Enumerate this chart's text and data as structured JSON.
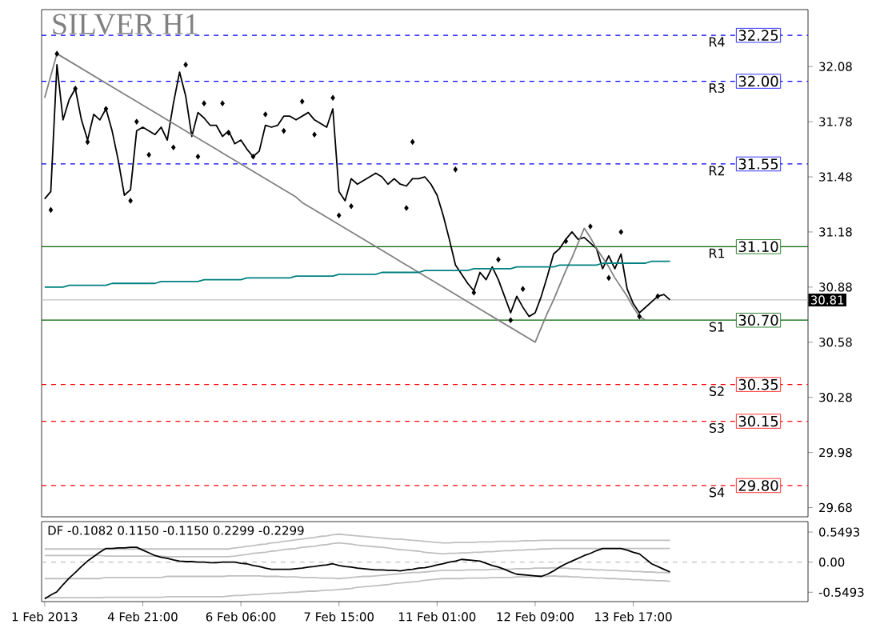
{
  "chart_data": [
    {
      "type": "line",
      "title": "SILVER H1",
      "ylim": [
        29.63,
        32.39
      ],
      "yticks": [
        29.68,
        29.98,
        30.28,
        30.58,
        30.88,
        31.18,
        31.48,
        31.78,
        32.08
      ],
      "tick_labels": "y",
      "series": [
        {
          "color": "#000000",
          "values": [
            31.36,
            31.4,
            32.09,
            31.79,
            31.9,
            31.96,
            31.79,
            31.68,
            31.82,
            31.79,
            31.85,
            31.73,
            31.57,
            31.38,
            31.41,
            31.73,
            31.75,
            31.73,
            31.71,
            31.75,
            31.68,
            31.88,
            32.05,
            31.92,
            31.7,
            31.83,
            31.8,
            31.76,
            31.76,
            31.7,
            31.73,
            31.66,
            31.68,
            31.63,
            31.59,
            31.62,
            31.76,
            31.75,
            31.76,
            31.81,
            31.81,
            31.79,
            31.81,
            31.83,
            31.79,
            31.77,
            31.75,
            31.85,
            31.4,
            31.35,
            31.47,
            31.44,
            31.46,
            31.48,
            31.5,
            31.48,
            31.44,
            31.47,
            31.44,
            31.43,
            31.47,
            31.47,
            31.48,
            31.44,
            31.38,
            31.27,
            31.14,
            31.0,
            30.95,
            30.9,
            30.86,
            30.96,
            30.92,
            30.99,
            30.92,
            30.83,
            30.74,
            30.83,
            30.77,
            30.72,
            30.74,
            30.83,
            30.94,
            31.06,
            31.09,
            31.14,
            31.18,
            31.14,
            31.15,
            31.12,
            31.09,
            30.98,
            31.05,
            30.98,
            31.06,
            30.87,
            30.79,
            30.74,
            30.77,
            30.8,
            30.83,
            30.84,
            30.81,
            null,
            null,
            null,
            null,
            null,
            null,
            null,
            null,
            null,
            null,
            null,
            null,
            null,
            null,
            null,
            null,
            null,
            null,
            null,
            null,
            null,
            null
          ]
        },
        {
          "color": "#808080",
          "values": [
            31.91,
            32.03,
            32.15,
            32.13,
            32.11,
            32.09,
            32.07,
            32.05,
            32.03,
            32.01,
            31.99,
            31.97,
            31.95,
            31.93,
            31.91,
            31.89,
            31.87,
            31.85,
            31.83,
            31.81,
            31.79,
            31.77,
            31.75,
            31.73,
            31.71,
            31.69,
            31.67,
            31.65,
            31.63,
            31.61,
            31.59,
            31.57,
            31.55,
            31.53,
            31.51,
            31.49,
            31.47,
            31.45,
            31.43,
            31.41,
            31.39,
            31.37,
            31.34,
            31.32,
            31.3,
            31.28,
            31.26,
            31.24,
            31.22,
            31.2,
            31.18,
            31.16,
            31.14,
            31.12,
            31.1,
            31.08,
            31.06,
            31.04,
            31.02,
            31.0,
            30.98,
            30.96,
            30.94,
            30.92,
            30.9,
            30.88,
            30.86,
            30.84,
            30.82,
            30.8,
            30.78,
            30.76,
            30.74,
            30.72,
            30.7,
            30.68,
            30.66,
            30.64,
            30.62,
            30.6,
            30.58,
            30.66,
            30.74,
            30.81,
            30.89,
            30.97,
            31.04,
            31.12,
            31.2,
            31.15,
            31.09,
            31.04,
            30.99,
            30.93,
            30.88,
            30.83,
            30.77,
            30.72,
            30.7,
            null,
            null,
            null,
            null,
            null,
            null,
            null,
            null,
            null,
            null,
            null,
            null,
            null,
            null,
            null,
            null,
            null,
            null,
            null,
            null,
            null,
            null,
            null,
            null,
            null,
            null
          ]
        },
        {
          "color": "#008080",
          "values": [
            30.88,
            30.88,
            30.88,
            30.88,
            30.89,
            30.89,
            30.89,
            30.89,
            30.89,
            30.89,
            30.89,
            30.9,
            30.9,
            30.9,
            30.9,
            30.9,
            30.9,
            30.9,
            30.9,
            30.91,
            30.91,
            30.91,
            30.91,
            30.91,
            30.91,
            30.91,
            30.92,
            30.92,
            30.92,
            30.92,
            30.92,
            30.92,
            30.92,
            30.93,
            30.93,
            30.93,
            30.93,
            30.93,
            30.93,
            30.93,
            30.93,
            30.94,
            30.94,
            30.94,
            30.94,
            30.94,
            30.94,
            30.94,
            30.95,
            30.95,
            30.95,
            30.95,
            30.95,
            30.95,
            30.95,
            30.96,
            30.96,
            30.96,
            30.96,
            30.96,
            30.96,
            30.96,
            30.97,
            30.97,
            30.97,
            30.97,
            30.97,
            30.97,
            30.97,
            30.97,
            30.98,
            30.98,
            30.98,
            30.98,
            30.98,
            30.98,
            30.98,
            30.99,
            30.99,
            30.99,
            30.99,
            30.99,
            30.99,
            30.99,
            31.0,
            31.0,
            31.0,
            31.0,
            31.0,
            31.0,
            31.0,
            31.01,
            31.01,
            31.01,
            31.01,
            31.01,
            31.01,
            31.01,
            31.01,
            31.02,
            31.02,
            31.02,
            31.02,
            null,
            null,
            null,
            null,
            null,
            null,
            null,
            null,
            null,
            null,
            null,
            null,
            null,
            null,
            null,
            null,
            null,
            null,
            null,
            null,
            null,
            null
          ]
        },
        {
          "type": "scatter",
          "marker": "diamond",
          "color": "#000000",
          "values": [
            null,
            31.3,
            32.15,
            null,
            null,
            31.96,
            null,
            31.67,
            null,
            null,
            31.85,
            null,
            null,
            null,
            31.35,
            31.78,
            null,
            31.6,
            null,
            null,
            null,
            31.64,
            null,
            32.09,
            null,
            31.59,
            31.88,
            null,
            null,
            31.88,
            31.72,
            null,
            null,
            null,
            31.59,
            null,
            31.82,
            null,
            null,
            31.73,
            null,
            null,
            31.89,
            null,
            31.71,
            null,
            null,
            31.91,
            31.27,
            null,
            31.32,
            null,
            null,
            null,
            null,
            null,
            null,
            null,
            null,
            31.31,
            31.67,
            null,
            null,
            null,
            null,
            null,
            null,
            31.52,
            null,
            null,
            30.85,
            null,
            null,
            null,
            31.03,
            null,
            30.7,
            null,
            30.87,
            null,
            null,
            null,
            null,
            null,
            null,
            31.13,
            null,
            null,
            null,
            31.21,
            null,
            null,
            30.93,
            null,
            31.18,
            null,
            null,
            30.72,
            null,
            null,
            30.83,
            null,
            null,
            null,
            null,
            null,
            null,
            null,
            null,
            null,
            null,
            null,
            null,
            null,
            null,
            null,
            null,
            null,
            null,
            null,
            null,
            null,
            null,
            null,
            null
          ]
        }
      ],
      "ref_lines": [
        {
          "axis": "y",
          "value": 32.25,
          "label": "R4",
          "color": "#0000ff",
          "line_style": "dashed"
        },
        {
          "axis": "y",
          "value": 32.0,
          "label": "R3",
          "color": "#0000ff",
          "line_style": "dashed"
        },
        {
          "axis": "y",
          "value": 31.55,
          "label": "R2",
          "color": "#0000ff",
          "line_style": "dashed"
        },
        {
          "axis": "y",
          "value": 31.1,
          "label": "R1",
          "color": "#006400",
          "line_style": "solid"
        },
        {
          "axis": "y",
          "value": 30.7,
          "label": "S1",
          "color": "#006400",
          "line_style": "solid"
        },
        {
          "axis": "y",
          "value": 30.35,
          "label": "S2",
          "color": "#ff0000",
          "line_style": "dashed"
        },
        {
          "axis": "y",
          "value": 30.15,
          "label": "S3",
          "color": "#ff0000",
          "line_style": "dashed"
        },
        {
          "axis": "y",
          "value": 29.8,
          "label": "S4",
          "color": "#ff0000",
          "line_style": "dashed"
        },
        {
          "axis": "y",
          "value": 30.81,
          "color": "#c0c0c0",
          "line_style": "solid"
        }
      ],
      "annotations": [
        {
          "text": "32.25",
          "y": 32.25
        },
        {
          "text": "32.00",
          "y": 32.0
        },
        {
          "text": "31.55",
          "y": 31.55
        },
        {
          "text": "31.10",
          "y": 31.1
        },
        {
          "text": "30.70",
          "y": 30.7
        },
        {
          "text": "30.35",
          "y": 30.35
        },
        {
          "text": "30.15",
          "y": 30.15
        },
        {
          "text": "29.80",
          "y": 29.8
        },
        {
          "text": "30.81",
          "y": 30.81
        }
      ]
    },
    {
      "type": "line",
      "title": "DF -0.1082 0.1150 -0.1150 0.2299 -0.2299",
      "ylim": [
        -0.72,
        0.74
      ],
      "categories": [
        "1 Feb 2013",
        null,
        null,
        null,
        null,
        null,
        null,
        null,
        null,
        null,
        null,
        null,
        null,
        null,
        null,
        null,
        "4 Feb 21:00",
        null,
        null,
        null,
        null,
        null,
        null,
        null,
        null,
        null,
        null,
        null,
        null,
        null,
        null,
        null,
        "6 Feb 06:00",
        null,
        null,
        null,
        null,
        null,
        null,
        null,
        null,
        null,
        null,
        null,
        null,
        null,
        null,
        null,
        "7 Feb 15:00",
        null,
        null,
        null,
        null,
        null,
        null,
        null,
        null,
        null,
        null,
        null,
        null,
        null,
        null,
        null,
        "11 Feb 01:00",
        null,
        null,
        null,
        null,
        null,
        null,
        null,
        null,
        null,
        null,
        null,
        null,
        null,
        null,
        null,
        "12 Feb 09:00",
        null,
        null,
        null,
        null,
        null,
        null,
        null,
        null,
        null,
        null,
        null,
        null,
        null,
        null,
        null,
        "13 Feb 17:00",
        null,
        null,
        null,
        null,
        null,
        null,
        null,
        null,
        null,
        null,
        null,
        null,
        null,
        null,
        null,
        null,
        null,
        null,
        null,
        null,
        null,
        null,
        null,
        null,
        null,
        null,
        null,
        null
      ],
      "yticks": [
        -0.5493,
        {
          "value": 0,
          "label": "0.00"
        },
        0.5493
      ],
      "series": [
        {
          "color": "#c0c0c0",
          "values": [
            0.24,
            0.24,
            0.24,
            0.24,
            0.24,
            0.24,
            0.24,
            0.24,
            0.24,
            0.24,
            0.24,
            0.24,
            0.24,
            0.24,
            0.24,
            0.24,
            0.24,
            0.24,
            0.24,
            0.24,
            0.24,
            0.24,
            0.24,
            0.24,
            0.24,
            0.24,
            0.24,
            0.24,
            0.24,
            0.24,
            0.24,
            0.26,
            0.27,
            0.29,
            0.3,
            0.32,
            0.33,
            0.35,
            0.36,
            0.38,
            0.39,
            0.41,
            0.42,
            0.44,
            0.45,
            0.47,
            0.48,
            0.5,
            0.51,
            0.5,
            0.49,
            0.48,
            0.47,
            0.46,
            0.45,
            0.44,
            0.43,
            0.42,
            0.42,
            0.41,
            0.4,
            0.39,
            0.38,
            0.37,
            0.36,
            0.35,
            0.35,
            0.36,
            0.36,
            0.36,
            0.36,
            0.37,
            0.37,
            0.37,
            0.38,
            0.38,
            0.38,
            0.38,
            0.39,
            0.39,
            0.39,
            0.4,
            0.4,
            0.4,
            0.4,
            0.4,
            0.4,
            0.4,
            0.4,
            0.4,
            0.4,
            0.4,
            0.4,
            0.4,
            0.4,
            0.4,
            0.4,
            0.4,
            0.4,
            0.4,
            0.4,
            0.4,
            0.4,
            null,
            null,
            null,
            null,
            null,
            null,
            null,
            null,
            null,
            null,
            null,
            null,
            null,
            null,
            null,
            null,
            null,
            null,
            null,
            null,
            null,
            null
          ]
        },
        {
          "color": "#c0c0c0",
          "values": [
            0.12,
            0.12,
            0.12,
            0.12,
            0.12,
            0.12,
            0.12,
            0.12,
            0.12,
            0.12,
            0.11,
            0.11,
            0.11,
            0.11,
            0.11,
            0.11,
            0.11,
            0.11,
            0.11,
            0.11,
            0.1,
            0.1,
            0.1,
            0.1,
            0.1,
            0.1,
            0.1,
            0.1,
            0.1,
            0.1,
            0.1,
            0.11,
            0.13,
            0.14,
            0.16,
            0.17,
            0.18,
            0.2,
            0.21,
            0.23,
            0.24,
            0.25,
            0.27,
            0.28,
            0.29,
            0.31,
            0.32,
            0.34,
            0.35,
            0.34,
            0.33,
            0.31,
            0.3,
            0.29,
            0.28,
            0.27,
            0.26,
            0.24,
            0.23,
            0.22,
            0.21,
            0.2,
            0.18,
            0.17,
            0.16,
            0.15,
            0.16,
            0.16,
            0.17,
            0.17,
            0.18,
            0.18,
            0.19,
            0.19,
            0.2,
            0.21,
            0.21,
            0.22,
            0.22,
            0.23,
            0.23,
            0.24,
            0.24,
            0.25,
            0.25,
            0.25,
            0.25,
            0.25,
            0.25,
            0.25,
            0.25,
            0.25,
            0.25,
            0.25,
            0.25,
            0.25,
            0.25,
            0.25,
            0.25,
            0.25,
            0.25,
            0.25,
            0.25,
            null,
            null,
            null,
            null,
            null,
            null,
            null,
            null,
            null,
            null,
            null,
            null,
            null,
            null,
            null,
            null,
            null,
            null,
            null,
            null,
            null,
            null
          ]
        },
        {
          "color": "#c0c0c0",
          "values": [
            -0.3,
            -0.3,
            -0.3,
            -0.3,
            -0.3,
            -0.3,
            -0.3,
            -0.3,
            -0.3,
            -0.3,
            -0.28,
            -0.28,
            -0.28,
            -0.28,
            -0.28,
            -0.28,
            -0.28,
            -0.28,
            -0.28,
            -0.28,
            -0.26,
            -0.26,
            -0.26,
            -0.26,
            -0.26,
            -0.26,
            -0.26,
            -0.26,
            -0.26,
            -0.26,
            -0.25,
            -0.25,
            -0.25,
            -0.25,
            -0.25,
            -0.25,
            -0.26,
            -0.26,
            -0.26,
            -0.27,
            -0.27,
            -0.27,
            -0.28,
            -0.28,
            -0.28,
            -0.29,
            -0.29,
            -0.29,
            -0.3,
            -0.29,
            -0.28,
            -0.27,
            -0.26,
            -0.26,
            -0.25,
            -0.24,
            -0.23,
            -0.22,
            -0.21,
            -0.2,
            -0.19,
            -0.19,
            -0.18,
            -0.17,
            -0.16,
            -0.15,
            -0.15,
            -0.15,
            -0.15,
            -0.14,
            -0.14,
            -0.14,
            -0.14,
            -0.13,
            -0.13,
            -0.13,
            -0.13,
            -0.12,
            -0.12,
            -0.12,
            -0.11,
            -0.11,
            -0.11,
            -0.1,
            -0.11,
            -0.11,
            -0.12,
            -0.12,
            -0.13,
            -0.13,
            -0.14,
            -0.14,
            -0.15,
            -0.15,
            -0.16,
            -0.16,
            -0.17,
            -0.17,
            -0.18,
            -0.18,
            -0.19,
            -0.19,
            -0.2,
            null,
            null,
            null,
            null,
            null,
            null,
            null,
            null,
            null,
            null,
            null,
            null,
            null,
            null,
            null,
            null,
            null,
            null,
            null,
            null,
            null,
            null
          ]
        },
        {
          "color": "#c0c0c0",
          "values": [
            -0.65,
            -0.65,
            -0.65,
            -0.65,
            -0.65,
            -0.65,
            -0.65,
            -0.65,
            -0.65,
            -0.65,
            -0.64,
            -0.64,
            -0.64,
            -0.64,
            -0.64,
            -0.64,
            -0.64,
            -0.64,
            -0.64,
            -0.64,
            -0.63,
            -0.63,
            -0.63,
            -0.63,
            -0.63,
            -0.63,
            -0.63,
            -0.63,
            -0.63,
            -0.63,
            -0.62,
            -0.61,
            -0.61,
            -0.6,
            -0.59,
            -0.59,
            -0.58,
            -0.57,
            -0.57,
            -0.56,
            -0.55,
            -0.55,
            -0.54,
            -0.53,
            -0.53,
            -0.52,
            -0.51,
            -0.51,
            -0.5,
            -0.49,
            -0.48,
            -0.46,
            -0.45,
            -0.44,
            -0.43,
            -0.42,
            -0.41,
            -0.39,
            -0.38,
            -0.37,
            -0.36,
            -0.35,
            -0.33,
            -0.32,
            -0.31,
            -0.3,
            -0.3,
            -0.3,
            -0.3,
            -0.29,
            -0.29,
            -0.29,
            -0.29,
            -0.28,
            -0.28,
            -0.28,
            -0.28,
            -0.27,
            -0.27,
            -0.27,
            -0.26,
            -0.26,
            -0.26,
            -0.25,
            -0.26,
            -0.26,
            -0.27,
            -0.27,
            -0.28,
            -0.28,
            -0.29,
            -0.29,
            -0.3,
            -0.3,
            -0.31,
            -0.31,
            -0.32,
            -0.32,
            -0.33,
            -0.33,
            -0.34,
            -0.34,
            -0.35,
            null,
            null,
            null,
            null,
            null,
            null,
            null,
            null,
            null,
            null,
            null,
            null,
            null,
            null,
            null,
            null,
            null,
            null,
            null,
            null,
            null,
            null
          ]
        },
        {
          "color": "#000000",
          "values": [
            -0.67,
            -0.6,
            -0.54,
            -0.41,
            -0.29,
            -0.19,
            -0.08,
            0.02,
            0.1,
            0.18,
            0.25,
            0.25,
            0.26,
            0.26,
            0.27,
            0.27,
            0.22,
            0.17,
            0.12,
            0.09,
            0.07,
            0.04,
            0.02,
            0.01,
            0.01,
            0.0,
            0.0,
            -0.01,
            -0.01,
            0.0,
            0.0,
            0.0,
            -0.02,
            -0.03,
            -0.06,
            -0.08,
            -0.11,
            -0.13,
            -0.13,
            -0.13,
            -0.13,
            -0.12,
            -0.11,
            -0.09,
            -0.08,
            -0.06,
            -0.05,
            -0.03,
            -0.06,
            -0.08,
            -0.09,
            -0.11,
            -0.12,
            -0.13,
            -0.14,
            -0.14,
            -0.15,
            -0.15,
            -0.16,
            -0.14,
            -0.13,
            -0.11,
            -0.1,
            -0.08,
            -0.05,
            -0.03,
            0.0,
            0.02,
            0.05,
            0.04,
            0.03,
            0.02,
            -0.02,
            -0.06,
            -0.09,
            -0.13,
            -0.18,
            -0.22,
            -0.23,
            -0.24,
            -0.25,
            -0.26,
            -0.22,
            -0.16,
            -0.09,
            -0.03,
            0.02,
            0.07,
            0.12,
            0.16,
            0.21,
            0.25,
            0.25,
            0.25,
            0.25,
            0.22,
            0.18,
            0.15,
            0.06,
            -0.03,
            -0.08,
            -0.13,
            -0.18,
            null,
            null,
            null,
            null,
            null,
            null,
            null,
            null,
            null,
            null,
            null,
            null,
            null,
            null,
            null,
            null,
            null,
            null,
            null,
            null,
            null,
            null
          ]
        }
      ],
      "ref_lines": [
        {
          "axis": "y",
          "value": 0,
          "color": "#c0c0c0",
          "line_style": "dashed"
        }
      ]
    }
  ]
}
